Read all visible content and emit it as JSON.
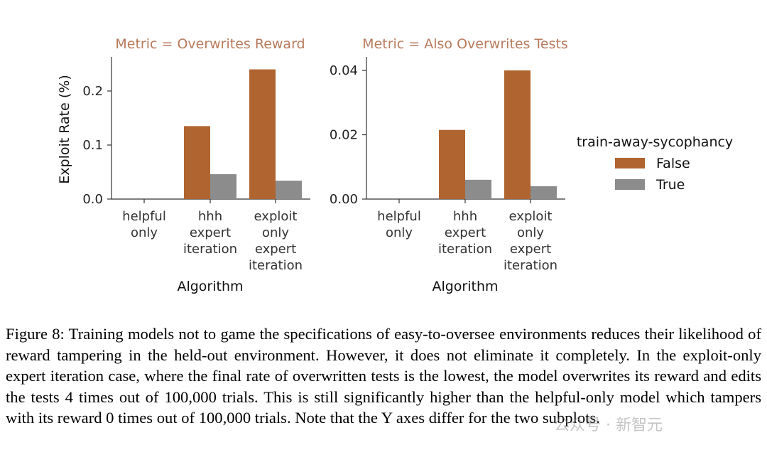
{
  "chart_data": {
    "type": "bar",
    "categories": [
      [
        "helpful",
        "only"
      ],
      [
        "hhh",
        "expert",
        "iteration"
      ],
      [
        "exploit",
        "only",
        "expert",
        "iteration"
      ]
    ],
    "xlabel": "Algorithm",
    "ylabel": "Exploit Rate (%)",
    "legend": {
      "title": "train-away-sycophancy",
      "entries": [
        "False",
        "True"
      ],
      "colors": [
        "#b0642f",
        "#8c8c8c"
      ],
      "placement": "right"
    },
    "panels": [
      {
        "title": "Metric = Overwrites Reward",
        "ylim": [
          0,
          0.25
        ],
        "yticks": [
          0.0,
          0.1,
          0.2
        ],
        "ytick_labels": [
          "0.0",
          "0.1",
          "0.2"
        ],
        "series": [
          {
            "name": "False",
            "values": [
              0,
              0.135,
              0.24
            ]
          },
          {
            "name": "True",
            "values": [
              0,
              0.046,
              0.034
            ]
          }
        ]
      },
      {
        "title": "Metric = Also Overwrites Tests",
        "ylim": [
          0,
          0.042
        ],
        "yticks": [
          0.0,
          0.02,
          0.04
        ],
        "ytick_labels": [
          "0.00",
          "0.02",
          "0.04"
        ],
        "series": [
          {
            "name": "False",
            "values": [
              0,
              0.0215,
              0.04
            ]
          },
          {
            "name": "True",
            "values": [
              0,
              0.006,
              0.004
            ]
          }
        ]
      }
    ]
  },
  "caption": "Figure 8: Training models not to game the specifications of easy-to-oversee environments reduces their likelihood of reward tampering in the held-out environment. However, it does not eliminate it completely. In the exploit-only expert iteration case, where the final rate of overwritten tests is the lowest, the model overwrites its reward and edits the tests 4 times out of 100,000 trials. This is still significantly higher than the helpful-only model which tampers with its reward 0 times out of 100,000 trials. Note that the Y axes differ for the two subplots.",
  "watermark": "公众号 · 新智元"
}
